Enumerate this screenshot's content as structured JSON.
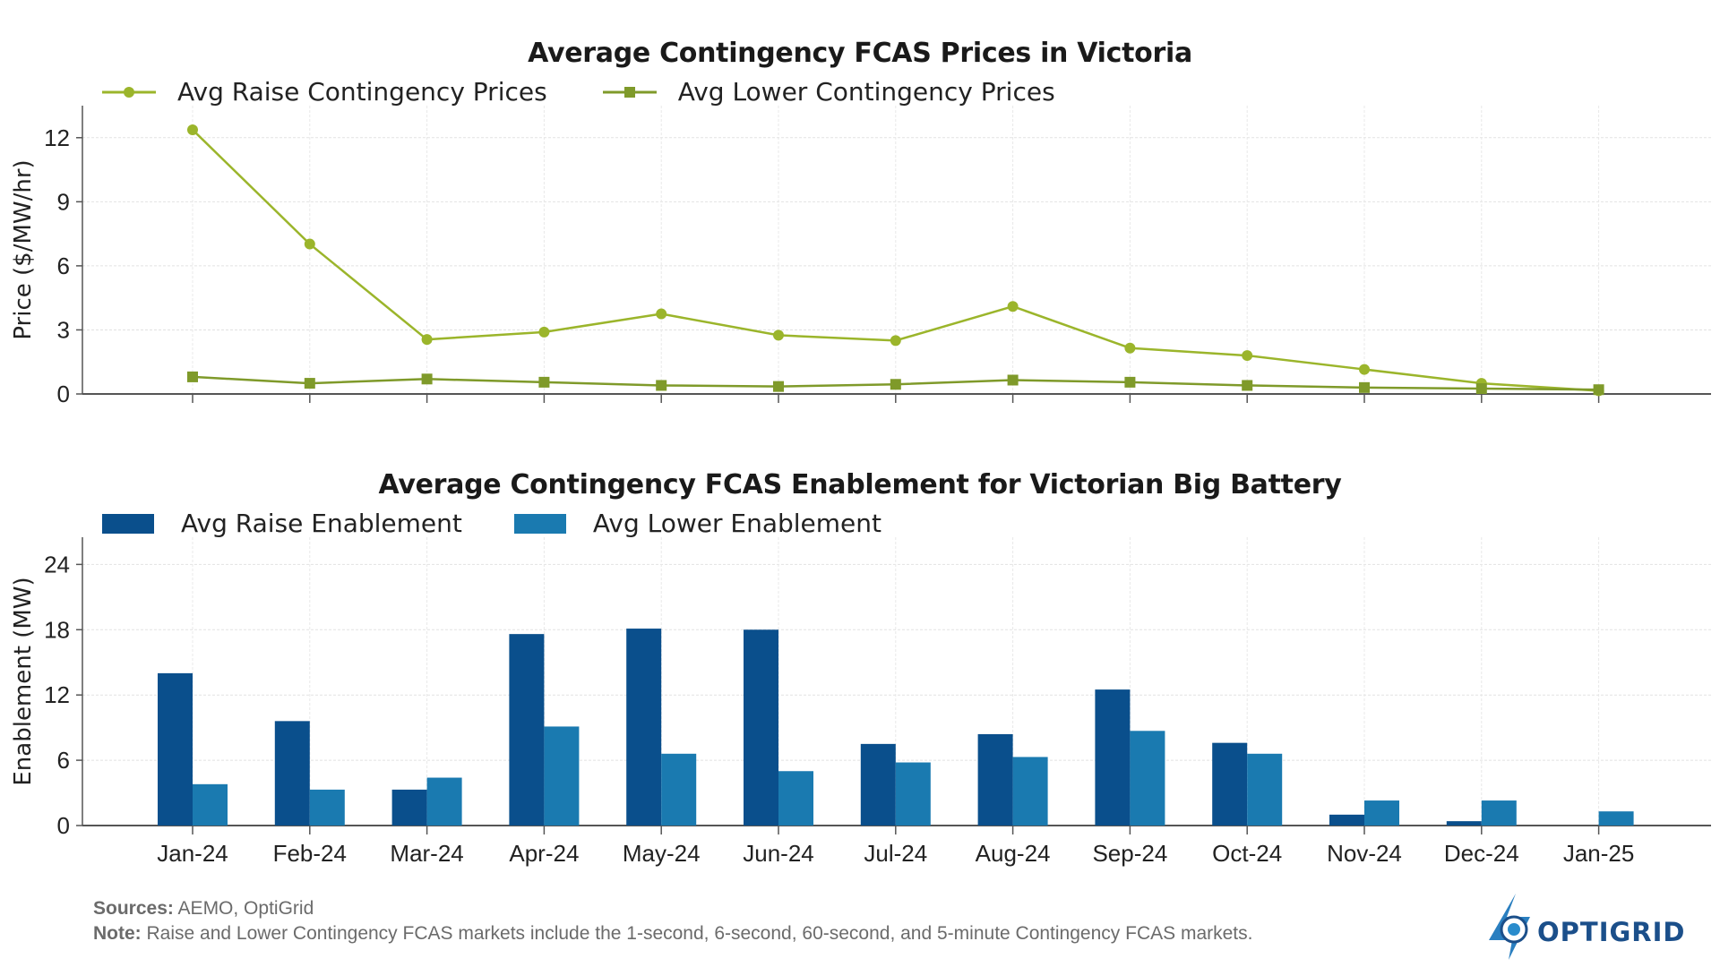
{
  "chart_data": [
    {
      "type": "line",
      "title": "Average Contingency FCAS Prices in Victoria",
      "xlabel": "",
      "ylabel": "Price ($/MW/hr)",
      "categories": [
        "Jan-24",
        "Feb-24",
        "Mar-24",
        "Apr-24",
        "May-24",
        "Jun-24",
        "Jul-24",
        "Aug-24",
        "Sep-24",
        "Oct-24",
        "Nov-24",
        "Dec-24",
        "Jan-25"
      ],
      "show_tick_labels_x": false,
      "ylim": [
        0,
        13.5
      ],
      "yticks": [
        0,
        3,
        6,
        9,
        12
      ],
      "grid": true,
      "legend_position": "top-left",
      "series": [
        {
          "name": "Avg Raise Contingency Prices",
          "marker": "circle",
          "color": "#9bb52b",
          "values": [
            12.37,
            7.02,
            2.55,
            2.9,
            3.75,
            2.75,
            2.5,
            4.1,
            2.15,
            1.8,
            1.15,
            0.5,
            0.15
          ]
        },
        {
          "name": "Avg Lower Contingency Prices",
          "marker": "square",
          "color": "#7f9a2a",
          "values": [
            0.8,
            0.5,
            0.7,
            0.55,
            0.4,
            0.35,
            0.45,
            0.65,
            0.55,
            0.4,
            0.3,
            0.25,
            0.2
          ]
        }
      ]
    },
    {
      "type": "bar",
      "title": "Average Contingency FCAS Enablement for Victorian Big Battery",
      "xlabel": "",
      "ylabel": "Enablement (MW)",
      "categories": [
        "Jan-24",
        "Feb-24",
        "Mar-24",
        "Apr-24",
        "May-24",
        "Jun-24",
        "Jul-24",
        "Aug-24",
        "Sep-24",
        "Oct-24",
        "Nov-24",
        "Dec-24",
        "Jan-25"
      ],
      "ylim": [
        0,
        26.5
      ],
      "yticks": [
        0,
        6,
        12,
        18,
        24
      ],
      "grid": true,
      "legend_position": "top-left",
      "series": [
        {
          "name": "Avg Raise Enablement",
          "color": "#0a4f8c",
          "values": [
            14.0,
            9.6,
            3.3,
            17.6,
            18.1,
            18.0,
            7.5,
            8.4,
            12.5,
            7.6,
            1.0,
            0.4,
            0.0
          ]
        },
        {
          "name": "Avg Lower Enablement",
          "color": "#1a7ab0",
          "values": [
            3.8,
            3.3,
            4.4,
            9.1,
            6.6,
            5.0,
            5.8,
            6.3,
            8.7,
            6.6,
            2.3,
            2.3,
            1.3
          ]
        }
      ]
    }
  ],
  "footer": {
    "sources_label": "Sources:",
    "sources_text": " AEMO, OptiGrid",
    "note_label": "Note:",
    "note_text": " Raise and Lower Contingency FCAS markets include the 1-second, 6-second, 60-second, and 5-minute Contingency FCAS markets."
  },
  "logo": {
    "text": "OPTIGRID",
    "color": "#1b4f8a",
    "accent": "#2a8ccc"
  }
}
